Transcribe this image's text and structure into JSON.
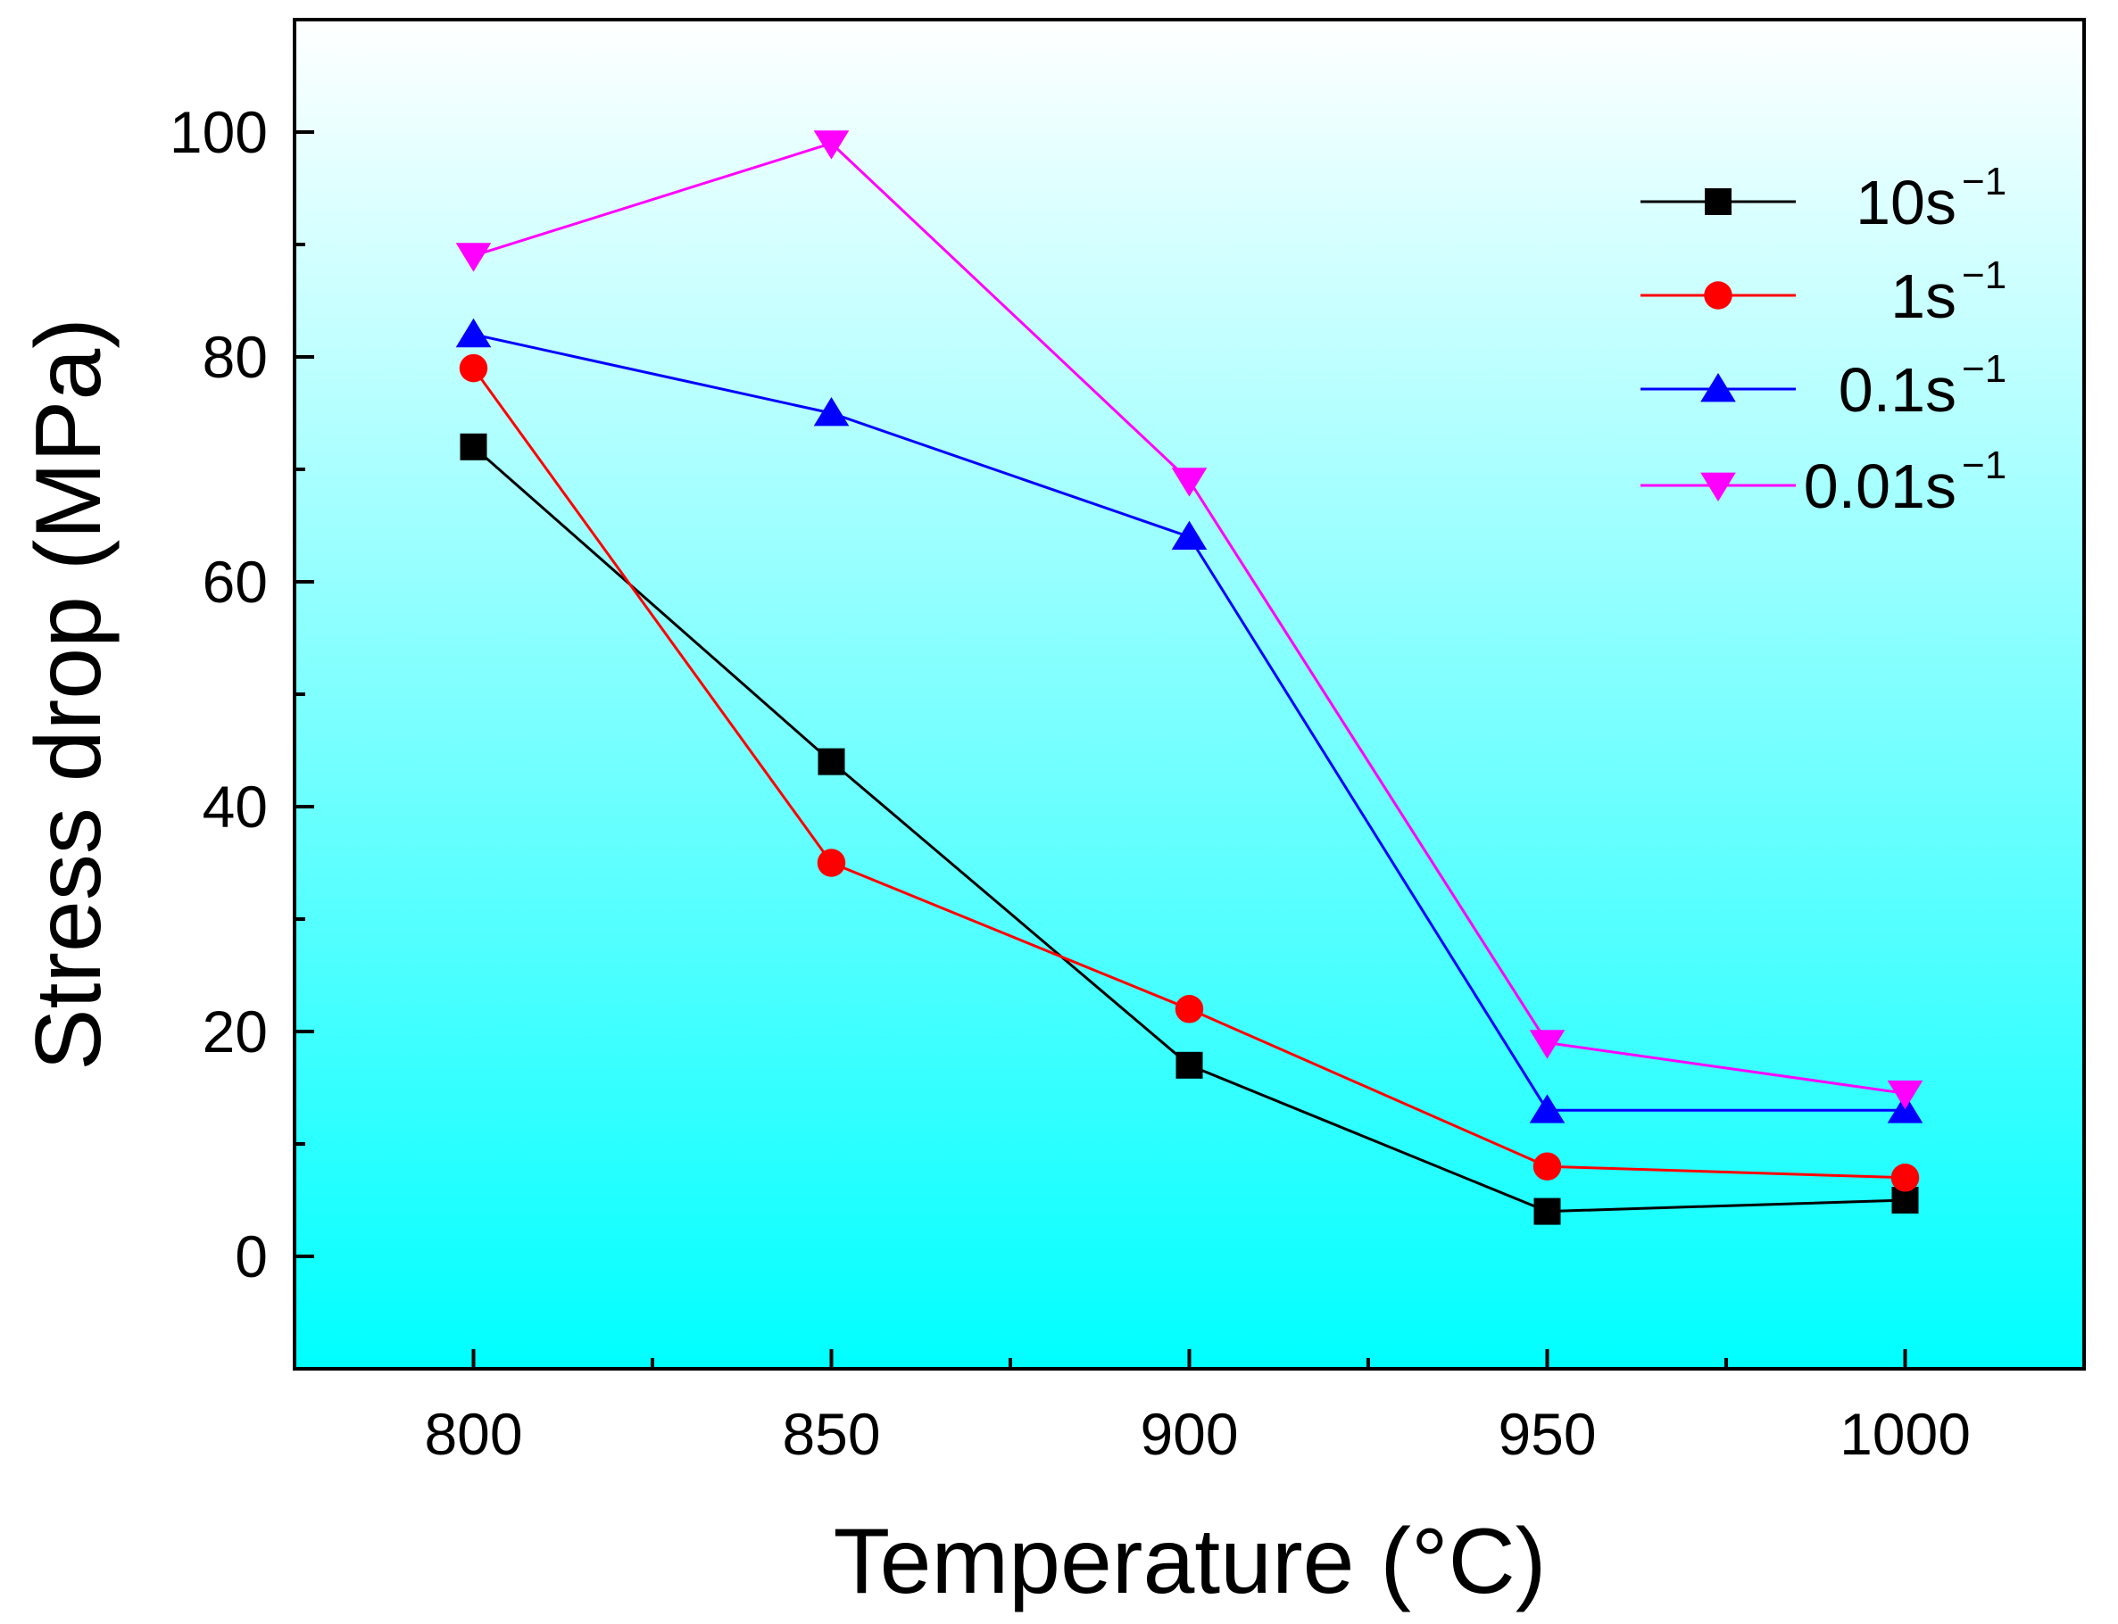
{
  "chart_data": {
    "type": "line",
    "title": "",
    "xlabel": "Temperature (°C)",
    "ylabel": "Stress drop (MPa)",
    "x": [
      800,
      850,
      900,
      950,
      1000
    ],
    "xlim": [
      775,
      1025
    ],
    "ylim": [
      -10,
      110
    ],
    "xticks": [
      800,
      850,
      900,
      950,
      1000
    ],
    "yticks": [
      0,
      20,
      40,
      60,
      80,
      100
    ],
    "yticks_minor": [
      -10,
      10,
      30,
      50,
      70,
      90,
      110
    ],
    "xticks_minor": [
      825,
      875,
      925,
      975
    ],
    "legend_position": "top-right",
    "background": "gradient white-to-cyan",
    "series": [
      {
        "name": "10s",
        "unit_exp": "−1",
        "color": "#000000",
        "marker": "square",
        "values": [
          72,
          44,
          17,
          4,
          5
        ]
      },
      {
        "name": "1s",
        "unit_exp": "−1",
        "color": "#ff0000",
        "marker": "circle",
        "values": [
          79,
          35,
          22,
          8,
          7
        ]
      },
      {
        "name": "0.1s",
        "unit_exp": "−1",
        "color": "#0000ff",
        "marker": "triangle-up",
        "values": [
          82,
          75,
          64,
          13,
          13
        ]
      },
      {
        "name": "0.01s",
        "unit_exp": "−1",
        "color": "#ff00ff",
        "marker": "triangle-down",
        "values": [
          89,
          99,
          69,
          19,
          14.5
        ]
      }
    ]
  },
  "colors": {
    "gradient_top": "#ffffff",
    "gradient_bottom": "#00ffff",
    "axis": "#000000"
  }
}
